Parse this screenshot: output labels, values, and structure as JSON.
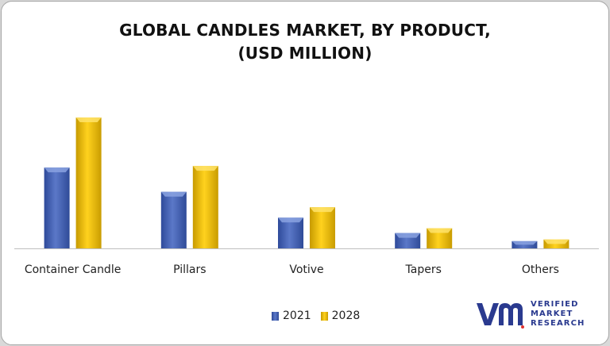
{
  "title": {
    "line1": "GLOBAL CANDLES MARKET, BY PRODUCT,",
    "line2": "(USD MILLION)"
  },
  "chart_data": {
    "type": "bar",
    "categories": [
      "Container Candle",
      "Pillars",
      "Votive",
      "Tapers",
      "Others"
    ],
    "series": [
      {
        "name": "2021",
        "values": [
          100,
          70,
          38,
          19,
          9
        ],
        "color": "#4a66b5"
      },
      {
        "name": "2028",
        "values": [
          162,
          102,
          51,
          25,
          11
        ],
        "color": "#e8b800"
      }
    ],
    "title": "GLOBAL CANDLES MARKET, BY PRODUCT, (USD MILLION)",
    "xlabel": "",
    "ylabel": "",
    "ylim": [
      0,
      165
    ],
    "grid": false,
    "legend": "bottom"
  },
  "legend": {
    "items": [
      {
        "label": "2021",
        "color": "#4a66b5"
      },
      {
        "label": "2028",
        "color": "#e8b800"
      }
    ]
  },
  "logo": {
    "line1": "VERIFIED",
    "line2": "MARKET",
    "line3": "RESEARCH",
    "reg": "®",
    "color": "#2a3a8f"
  }
}
